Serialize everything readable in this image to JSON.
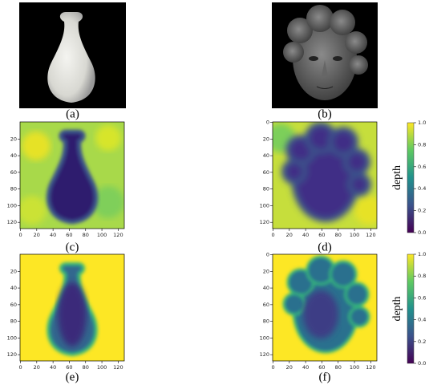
{
  "figure": {
    "panels": [
      {
        "caption": "(a)"
      },
      {
        "caption": "(b)"
      },
      {
        "caption": "(c)",
        "xlim": [
          -0.5,
          127.5
        ],
        "ylim": [
          127.5,
          -0.5
        ],
        "xticks": [
          0,
          20,
          40,
          60,
          80,
          100,
          120
        ],
        "yticks": [
          20,
          40,
          60,
          80,
          100,
          120
        ]
      },
      {
        "caption": "(d)",
        "xlim": [
          -0.5,
          127.5
        ],
        "ylim": [
          127.5,
          -0.5
        ],
        "xticks": [
          0,
          20,
          40,
          60,
          80,
          100,
          120
        ],
        "yticks": [
          0,
          20,
          40,
          60,
          80,
          100,
          120
        ]
      },
      {
        "caption": "(e)",
        "xlim": [
          -0.5,
          127.5
        ],
        "ylim": [
          127.5,
          -0.5
        ],
        "xticks": [
          0,
          20,
          40,
          60,
          80,
          100,
          120
        ],
        "yticks": [
          20,
          40,
          60,
          80,
          100,
          120
        ]
      },
      {
        "caption": "(f)",
        "xlim": [
          -0.5,
          127.5
        ],
        "ylim": [
          127.5,
          -0.5
        ],
        "xticks": [
          0,
          20,
          40,
          60,
          80,
          100,
          120
        ],
        "yticks": [
          0,
          20,
          40,
          60,
          80,
          100,
          120
        ]
      }
    ],
    "colorbars": [
      {
        "label": "depth",
        "lim": [
          0,
          1
        ],
        "ticks": [
          {
            "value": 0,
            "label": "0.0"
          },
          {
            "value": 0.2,
            "label": "0.2"
          },
          {
            "value": 0.4,
            "label": "0.4"
          },
          {
            "value": 0.6,
            "label": "0.6"
          },
          {
            "value": 0.8,
            "label": "0.8"
          },
          {
            "value": 1,
            "label": "1.0"
          }
        ]
      },
      {
        "label": "depth",
        "lim": [
          0,
          1
        ],
        "ticks": [
          {
            "value": 0,
            "label": "0.0"
          },
          {
            "value": 0.2,
            "label": "0.2"
          },
          {
            "value": 0.4,
            "label": "0.4"
          },
          {
            "value": 0.6,
            "label": "0.6"
          },
          {
            "value": 0.8,
            "label": "0.8"
          },
          {
            "value": 1,
            "label": "1.0"
          }
        ]
      }
    ]
  }
}
